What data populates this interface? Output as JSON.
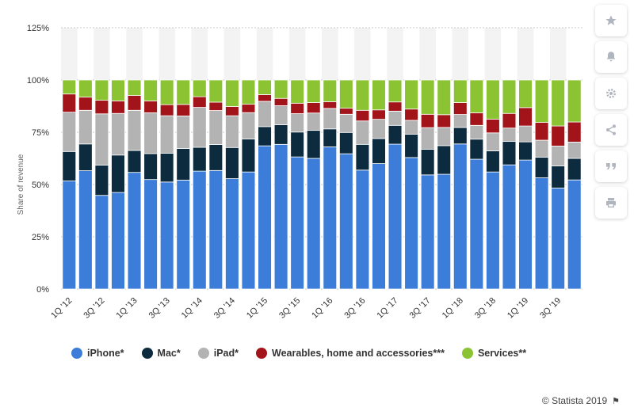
{
  "chart_data": {
    "type": "bar",
    "stacked": true,
    "ylabel": "Share of revenue",
    "ylim": [
      0,
      125
    ],
    "y_ticks": [
      "0%",
      "25%",
      "50%",
      "75%",
      "100%",
      "125%"
    ],
    "grid": true,
    "legend_position": "bottom",
    "categories": [
      "1Q '12",
      "2Q '12",
      "3Q '12",
      "4Q '12",
      "1Q '13",
      "2Q '13",
      "3Q '13",
      "4Q '13",
      "1Q '14",
      "2Q '14",
      "3Q '14",
      "4Q '14",
      "1Q '15",
      "2Q '15",
      "3Q '15",
      "4Q '15",
      "1Q '16",
      "2Q '16",
      "3Q '16",
      "4Q '16",
      "1Q '17",
      "2Q '17",
      "3Q '17",
      "4Q '17",
      "1Q '18",
      "2Q '18",
      "3Q '18",
      "4Q '18",
      "1Q '19",
      "2Q '19",
      "3Q '19",
      "4Q '19"
    ],
    "visible_x_labels": [
      "1Q '12",
      "3Q '12",
      "1Q '13",
      "3Q '13",
      "1Q '14",
      "3Q '14",
      "1Q '15",
      "3Q '15",
      "1Q '16",
      "3Q '16",
      "1Q '17",
      "3Q '17",
      "1Q '18",
      "3Q '18",
      "1Q '19",
      "3Q '19"
    ],
    "series": [
      {
        "name": "iPhone*",
        "color": "#3b7dd8",
        "values": [
          51.7,
          56.6,
          44.8,
          46.2,
          55.8,
          52.4,
          51.2,
          52.1,
          56.4,
          56.7,
          52.8,
          56.0,
          68.5,
          69.2,
          63.2,
          62.5,
          68.0,
          64.7,
          56.9,
          60.0,
          69.3,
          62.9,
          54.6,
          54.9,
          69.4,
          62.1,
          56.0,
          59.4,
          61.7,
          53.2,
          48.3,
          52.2
        ]
      },
      {
        "name": "Mac*",
        "color": "#0d2b3e",
        "values": [
          14.1,
          12.8,
          14.5,
          17.9,
          10.5,
          12.4,
          13.8,
          15.1,
          11.4,
          12.4,
          14.9,
          15.8,
          9.2,
          9.4,
          11.9,
          13.4,
          8.6,
          10.2,
          12.3,
          12.0,
          9.0,
          11.2,
          12.3,
          13.7,
          7.9,
          9.6,
          10.1,
          11.2,
          8.7,
          9.9,
          10.6,
          10.3
        ]
      },
      {
        "name": "iPad*",
        "color": "#b3b3b3",
        "values": [
          18.8,
          16.1,
          24.5,
          19.9,
          19.2,
          19.5,
          17.9,
          15.6,
          19.1,
          16.3,
          15.2,
          12.6,
          12.1,
          9.1,
          8.8,
          8.3,
          9.8,
          8.7,
          11.2,
          9.2,
          6.8,
          6.6,
          10.3,
          8.7,
          6.2,
          6.6,
          8.6,
          6.4,
          7.6,
          8.1,
          9.5,
          7.8
        ]
      },
      {
        "name": "Wearables, home and accessories***",
        "color": "#a3141a",
        "values": [
          8.7,
          6.3,
          6.5,
          6.0,
          7.1,
          5.7,
          5.3,
          5.5,
          5.1,
          4.0,
          4.4,
          4.0,
          3.2,
          3.5,
          5.0,
          5.0,
          3.2,
          2.9,
          5.1,
          4.5,
          4.4,
          5.4,
          6.4,
          6.1,
          5.7,
          6.0,
          6.6,
          7.0,
          8.8,
          8.5,
          9.6,
          9.6
        ]
      },
      {
        "name": "Services**",
        "color": "#8bc332",
        "values": [
          6.7,
          8.2,
          9.7,
          10.0,
          7.4,
          10.0,
          11.8,
          11.7,
          8.0,
          10.6,
          12.7,
          11.6,
          7.0,
          8.8,
          11.1,
          10.8,
          10.4,
          13.5,
          14.5,
          14.3,
          10.5,
          13.9,
          16.4,
          16.6,
          10.8,
          15.7,
          18.7,
          16.0,
          13.2,
          20.3,
          22.0,
          20.1
        ]
      }
    ]
  },
  "credit": {
    "text": "© Statista 2019"
  },
  "icons": [
    "star-icon",
    "bell-icon",
    "gear-icon",
    "share-icon",
    "quote-icon",
    "print-icon",
    "flag-icon"
  ]
}
